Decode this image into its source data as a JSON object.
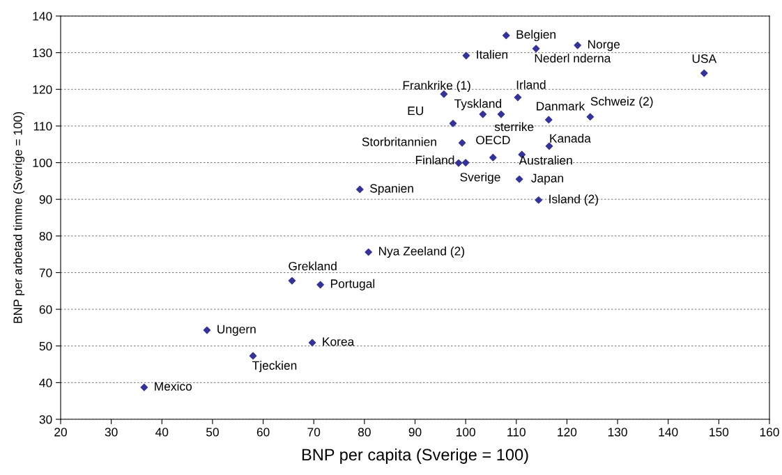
{
  "chart_data": {
    "type": "scatter",
    "xlabel": "BNP per capita (Sverige = 100)",
    "ylabel": "BNP per arbetad timme (Sverige = 100)",
    "xlim": [
      20,
      160
    ],
    "xticks": [
      20,
      30,
      40,
      50,
      60,
      70,
      80,
      90,
      100,
      110,
      120,
      130,
      140,
      150,
      160
    ],
    "ylim": [
      30,
      140
    ],
    "yticks": [
      30,
      40,
      50,
      60,
      70,
      80,
      90,
      100,
      110,
      120,
      130,
      140
    ],
    "grid": "y",
    "marker": "diamond",
    "legend": false,
    "series": [
      {
        "color": "#333399",
        "x": [
          108.0,
          122.1,
          113.9,
          100.1,
          147.1,
          95.7,
          110.3,
          103.4,
          107.0,
          116.4,
          124.6,
          97.5,
          99.3,
          116.5,
          111.1,
          105.4,
          98.6,
          100,
          110.6,
          114.4,
          79.1,
          80.8,
          65.7,
          71.3,
          48.9,
          69.7,
          58.0,
          36.5
        ],
        "values": [
          134.7,
          132.0,
          131.1,
          129.2,
          124.4,
          118.7,
          117.8,
          113.2,
          113.2,
          111.7,
          112.5,
          110.7,
          105.4,
          104.5,
          102.2,
          101.4,
          99.9,
          100,
          95.5,
          89.8,
          92.7,
          75.6,
          67.8,
          66.7,
          54.3,
          50.9,
          47.3,
          38.7
        ]
      }
    ],
    "annotations": [
      {
        "text": "Belgien",
        "x": 108.0,
        "y": 134.7
      },
      {
        "text": "Norge",
        "x": 122.1,
        "y": 132.0
      },
      {
        "text": "Nederl nderna",
        "x": 113.9,
        "y": 131.1
      },
      {
        "text": "Italien",
        "x": 100.1,
        "y": 129.2
      },
      {
        "text": "USA",
        "x": 147.1,
        "y": 124.4
      },
      {
        "text": "Frankrike (1)",
        "x": 95.7,
        "y": 118.7
      },
      {
        "text": "Irland",
        "x": 110.3,
        "y": 117.8
      },
      {
        "text": "Tyskland",
        "x": 103.4,
        "y": 113.2
      },
      {
        "text": "sterrike",
        "x": 107.0,
        "y": 113.2
      },
      {
        "text": "Danmark",
        "x": 116.4,
        "y": 111.7
      },
      {
        "text": "Schweiz (2)",
        "x": 124.6,
        "y": 112.5
      },
      {
        "text": "EU",
        "x": 97.5,
        "y": 110.7
      },
      {
        "text": "Storbritannien",
        "x": 99.3,
        "y": 105.4
      },
      {
        "text": "Kanada",
        "x": 116.5,
        "y": 104.5
      },
      {
        "text": "Australien",
        "x": 111.1,
        "y": 102.2
      },
      {
        "text": "OECD",
        "x": 105.4,
        "y": 101.4
      },
      {
        "text": "Finland",
        "x": 98.6,
        "y": 99.9
      },
      {
        "text": "Sverige",
        "x": 100,
        "y": 100
      },
      {
        "text": "Japan",
        "x": 110.6,
        "y": 95.5
      },
      {
        "text": "Island (2)",
        "x": 114.4,
        "y": 89.8
      },
      {
        "text": "Spanien",
        "x": 79.1,
        "y": 92.7
      },
      {
        "text": "Nya Zeeland (2)",
        "x": 80.8,
        "y": 75.6
      },
      {
        "text": "Grekland",
        "x": 65.7,
        "y": 67.8
      },
      {
        "text": "Portugal",
        "x": 71.3,
        "y": 66.7
      },
      {
        "text": "Ungern",
        "x": 48.9,
        "y": 54.3
      },
      {
        "text": "Korea",
        "x": 69.7,
        "y": 50.9
      },
      {
        "text": "Tjeckien",
        "x": 58.0,
        "y": 47.3
      },
      {
        "text": "Mexico",
        "x": 36.5,
        "y": 38.7
      }
    ]
  }
}
